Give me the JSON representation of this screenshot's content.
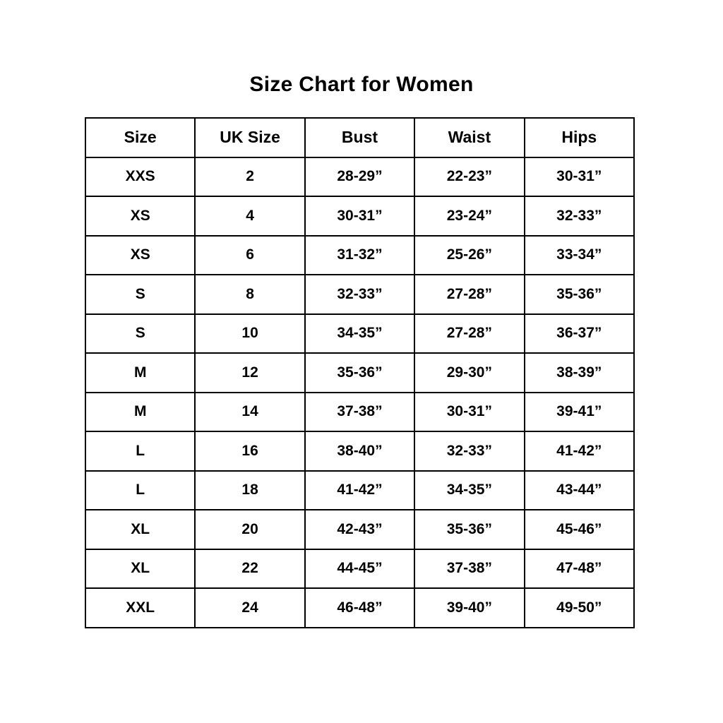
{
  "title": "Size Chart for Women",
  "colors": {
    "background": "#ffffff",
    "border": "#000000",
    "text": "#000000"
  },
  "chart_data": {
    "type": "table",
    "title": "Size Chart for Women",
    "columns": [
      "Size",
      "UK Size",
      "Bust",
      "Waist",
      "Hips"
    ],
    "rows": [
      [
        "XXS",
        "2",
        "28-29”",
        "22-23”",
        "30-31”"
      ],
      [
        "XS",
        "4",
        "30-31”",
        "23-24”",
        "32-33”"
      ],
      [
        "XS",
        "6",
        "31-32”",
        "25-26”",
        "33-34”"
      ],
      [
        "S",
        "8",
        "32-33”",
        "27-28”",
        "35-36”"
      ],
      [
        "S",
        "10",
        "34-35”",
        "27-28”",
        "36-37”"
      ],
      [
        "M",
        "12",
        "35-36”",
        "29-30”",
        "38-39”"
      ],
      [
        "M",
        "14",
        "37-38”",
        "30-31”",
        "39-41”"
      ],
      [
        "L",
        "16",
        "38-40”",
        "32-33”",
        "41-42”"
      ],
      [
        "L",
        "18",
        "41-42”",
        "34-35”",
        "43-44”"
      ],
      [
        "XL",
        "20",
        "42-43”",
        "35-36”",
        "45-46”"
      ],
      [
        "XL",
        "22",
        "44-45”",
        "37-38”",
        "47-48”"
      ],
      [
        "XXL",
        "24",
        "46-48”",
        "39-40”",
        "49-50”"
      ]
    ],
    "layout": {
      "grid": true,
      "header_row": true,
      "column_count": 5,
      "data_row_count": 12
    }
  }
}
